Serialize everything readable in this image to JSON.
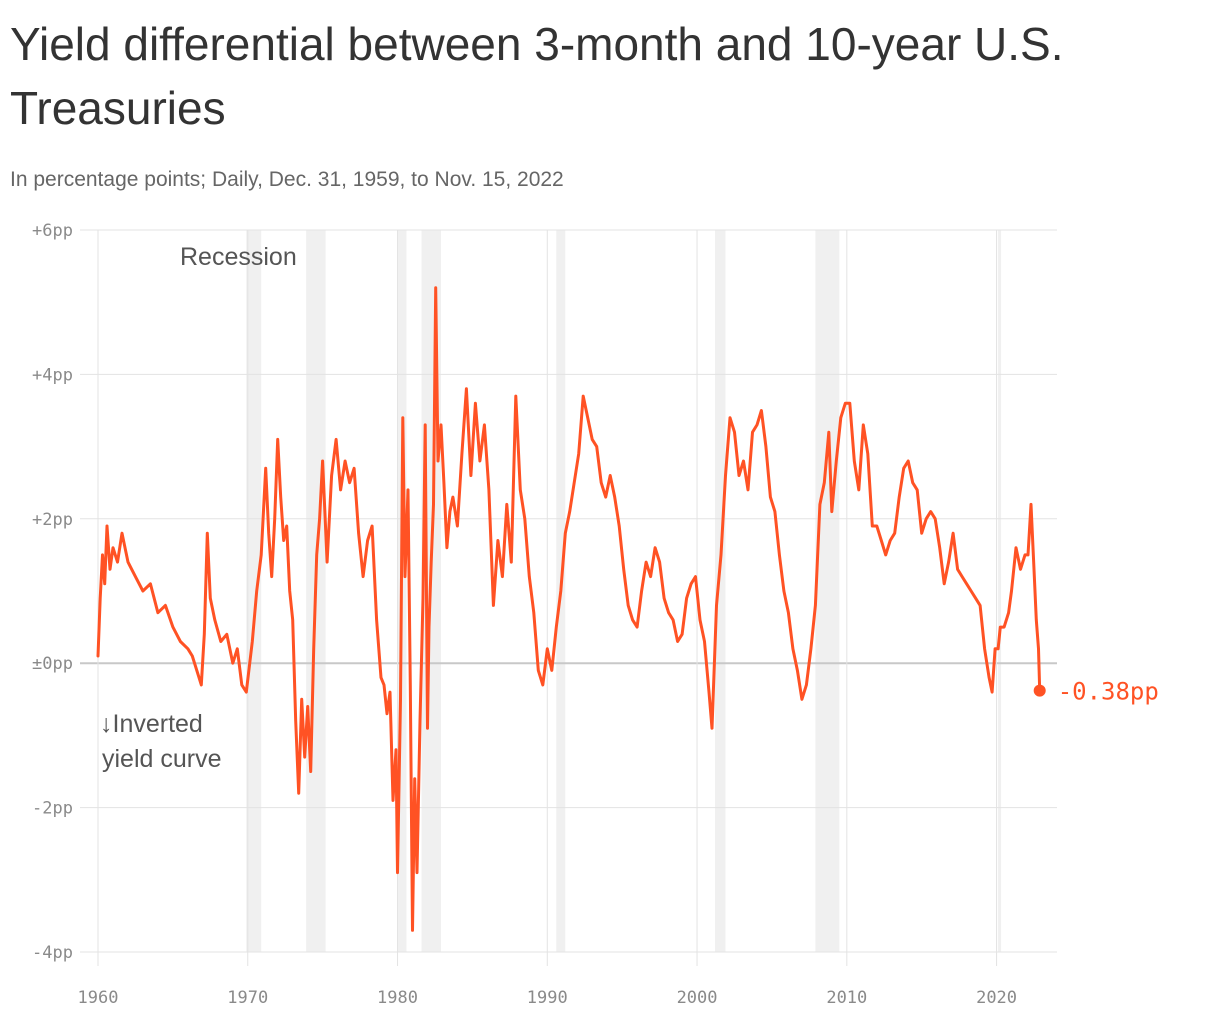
{
  "title": "Yield differential between 3‑month and 10‑year U.S. Treasuries",
  "subtitle": "In percentage points; Daily, Dec. 31, 1959, to Nov. 15, 2022",
  "colors": {
    "line": "#ff5224",
    "recession": "#f0f0f0",
    "grid": "#e3e3e3",
    "zero": "#c8c8c8",
    "tick": "#8a8a8a"
  },
  "annotations": {
    "recession": "Recession",
    "inverted_line1": "↓Inverted",
    "inverted_line2": "yield curve"
  },
  "chart_data": {
    "type": "line",
    "title": "Yield differential between 3‑month and 10‑year U.S. Treasuries",
    "subtitle": "In percentage points; Daily, Dec. 31, 1959, to Nov. 15, 2022",
    "xlabel": "",
    "ylabel": "",
    "xlim": [
      1960,
      2022.9
    ],
    "ylim": [
      -4,
      6
    ],
    "grid": true,
    "y_ticks": [
      {
        "value": 6,
        "label": "+6pp"
      },
      {
        "value": 4,
        "label": "+4pp"
      },
      {
        "value": 2,
        "label": "+2pp"
      },
      {
        "value": 0,
        "label": "±0pp"
      },
      {
        "value": -2,
        "label": "-2pp"
      },
      {
        "value": -4,
        "label": "-4pp"
      }
    ],
    "x_ticks": [
      1960,
      1970,
      1980,
      1990,
      2000,
      2010,
      2020
    ],
    "recessions": [
      [
        1969.9,
        1970.9
      ],
      [
        1973.9,
        1975.2
      ],
      [
        1980.0,
        1980.6
      ],
      [
        1981.6,
        1982.9
      ],
      [
        1990.6,
        1991.2
      ],
      [
        2001.2,
        2001.9
      ],
      [
        2007.9,
        2009.5
      ],
      [
        2020.1,
        2020.3
      ]
    ],
    "series": [
      {
        "values": [
          [
            1960.0,
            0.1
          ],
          [
            1960.15,
            0.9
          ],
          [
            1960.3,
            1.5
          ],
          [
            1960.45,
            1.1
          ],
          [
            1960.6,
            1.9
          ],
          [
            1960.8,
            1.3
          ],
          [
            1961.0,
            1.6
          ],
          [
            1961.3,
            1.4
          ],
          [
            1961.6,
            1.8
          ],
          [
            1962.0,
            1.4
          ],
          [
            1962.5,
            1.2
          ],
          [
            1963.0,
            1.0
          ],
          [
            1963.5,
            1.1
          ],
          [
            1964.0,
            0.7
          ],
          [
            1964.5,
            0.8
          ],
          [
            1965.0,
            0.5
          ],
          [
            1965.5,
            0.3
          ],
          [
            1966.0,
            0.2
          ],
          [
            1966.3,
            0.1
          ],
          [
            1966.6,
            -0.1
          ],
          [
            1966.9,
            -0.3
          ],
          [
            1967.1,
            0.4
          ],
          [
            1967.3,
            1.8
          ],
          [
            1967.5,
            0.9
          ],
          [
            1967.8,
            0.6
          ],
          [
            1968.2,
            0.3
          ],
          [
            1968.6,
            0.4
          ],
          [
            1969.0,
            0.0
          ],
          [
            1969.3,
            0.2
          ],
          [
            1969.6,
            -0.3
          ],
          [
            1969.9,
            -0.4
          ],
          [
            1970.3,
            0.3
          ],
          [
            1970.6,
            1.0
          ],
          [
            1970.9,
            1.5
          ],
          [
            1971.2,
            2.7
          ],
          [
            1971.4,
            1.8
          ],
          [
            1971.6,
            1.2
          ],
          [
            1971.8,
            2.0
          ],
          [
            1972.0,
            3.1
          ],
          [
            1972.2,
            2.3
          ],
          [
            1972.4,
            1.7
          ],
          [
            1972.6,
            1.9
          ],
          [
            1972.8,
            1.0
          ],
          [
            1973.0,
            0.6
          ],
          [
            1973.2,
            -0.8
          ],
          [
            1973.4,
            -1.8
          ],
          [
            1973.6,
            -0.5
          ],
          [
            1973.8,
            -1.3
          ],
          [
            1974.0,
            -0.6
          ],
          [
            1974.2,
            -1.5
          ],
          [
            1974.4,
            0.2
          ],
          [
            1974.6,
            1.5
          ],
          [
            1974.8,
            2.0
          ],
          [
            1975.0,
            2.8
          ],
          [
            1975.3,
            1.4
          ],
          [
            1975.6,
            2.6
          ],
          [
            1975.9,
            3.1
          ],
          [
            1976.2,
            2.4
          ],
          [
            1976.5,
            2.8
          ],
          [
            1976.8,
            2.5
          ],
          [
            1977.1,
            2.7
          ],
          [
            1977.4,
            1.8
          ],
          [
            1977.7,
            1.2
          ],
          [
            1978.0,
            1.7
          ],
          [
            1978.3,
            1.9
          ],
          [
            1978.6,
            0.6
          ],
          [
            1978.9,
            -0.2
          ],
          [
            1979.1,
            -0.3
          ],
          [
            1979.3,
            -0.7
          ],
          [
            1979.5,
            -0.4
          ],
          [
            1979.7,
            -1.9
          ],
          [
            1979.9,
            -1.2
          ],
          [
            1980.0,
            -2.9
          ],
          [
            1980.2,
            -0.5
          ],
          [
            1980.35,
            3.4
          ],
          [
            1980.5,
            1.2
          ],
          [
            1980.7,
            2.4
          ],
          [
            1980.85,
            -0.3
          ],
          [
            1981.0,
            -3.7
          ],
          [
            1981.15,
            -1.6
          ],
          [
            1981.3,
            -2.9
          ],
          [
            1981.5,
            -0.8
          ],
          [
            1981.7,
            0.9
          ],
          [
            1981.85,
            3.3
          ],
          [
            1982.0,
            -0.9
          ],
          [
            1982.1,
            0.5
          ],
          [
            1982.25,
            1.4
          ],
          [
            1982.4,
            2.2
          ],
          [
            1982.55,
            5.2
          ],
          [
            1982.7,
            2.8
          ],
          [
            1982.9,
            3.3
          ],
          [
            1983.1,
            2.5
          ],
          [
            1983.3,
            1.6
          ],
          [
            1983.5,
            2.1
          ],
          [
            1983.7,
            2.3
          ],
          [
            1984.0,
            1.9
          ],
          [
            1984.3,
            2.9
          ],
          [
            1984.6,
            3.8
          ],
          [
            1984.9,
            2.6
          ],
          [
            1985.2,
            3.6
          ],
          [
            1985.5,
            2.8
          ],
          [
            1985.8,
            3.3
          ],
          [
            1986.1,
            2.4
          ],
          [
            1986.4,
            0.8
          ],
          [
            1986.7,
            1.7
          ],
          [
            1987.0,
            1.2
          ],
          [
            1987.3,
            2.2
          ],
          [
            1987.6,
            1.4
          ],
          [
            1987.9,
            3.7
          ],
          [
            1988.2,
            2.4
          ],
          [
            1988.5,
            2.0
          ],
          [
            1988.8,
            1.2
          ],
          [
            1989.1,
            0.7
          ],
          [
            1989.4,
            -0.1
          ],
          [
            1989.7,
            -0.3
          ],
          [
            1990.0,
            0.2
          ],
          [
            1990.3,
            -0.1
          ],
          [
            1990.6,
            0.5
          ],
          [
            1990.9,
            1.0
          ],
          [
            1991.2,
            1.8
          ],
          [
            1991.5,
            2.1
          ],
          [
            1991.8,
            2.5
          ],
          [
            1992.1,
            2.9
          ],
          [
            1992.4,
            3.7
          ],
          [
            1992.7,
            3.4
          ],
          [
            1993.0,
            3.1
          ],
          [
            1993.3,
            3.0
          ],
          [
            1993.6,
            2.5
          ],
          [
            1993.9,
            2.3
          ],
          [
            1994.2,
            2.6
          ],
          [
            1994.5,
            2.3
          ],
          [
            1994.8,
            1.9
          ],
          [
            1995.1,
            1.3
          ],
          [
            1995.4,
            0.8
          ],
          [
            1995.7,
            0.6
          ],
          [
            1996.0,
            0.5
          ],
          [
            1996.3,
            1.0
          ],
          [
            1996.6,
            1.4
          ],
          [
            1996.9,
            1.2
          ],
          [
            1997.2,
            1.6
          ],
          [
            1997.5,
            1.4
          ],
          [
            1997.8,
            0.9
          ],
          [
            1998.1,
            0.7
          ],
          [
            1998.4,
            0.6
          ],
          [
            1998.7,
            0.3
          ],
          [
            1999.0,
            0.4
          ],
          [
            1999.3,
            0.9
          ],
          [
            1999.6,
            1.1
          ],
          [
            1999.9,
            1.2
          ],
          [
            2000.2,
            0.6
          ],
          [
            2000.5,
            0.3
          ],
          [
            2000.8,
            -0.4
          ],
          [
            2001.0,
            -0.9
          ],
          [
            2001.3,
            0.8
          ],
          [
            2001.6,
            1.5
          ],
          [
            2001.9,
            2.6
          ],
          [
            2002.2,
            3.4
          ],
          [
            2002.5,
            3.2
          ],
          [
            2002.8,
            2.6
          ],
          [
            2003.1,
            2.8
          ],
          [
            2003.4,
            2.4
          ],
          [
            2003.7,
            3.2
          ],
          [
            2004.0,
            3.3
          ],
          [
            2004.3,
            3.5
          ],
          [
            2004.6,
            3.0
          ],
          [
            2004.9,
            2.3
          ],
          [
            2005.2,
            2.1
          ],
          [
            2005.5,
            1.5
          ],
          [
            2005.8,
            1.0
          ],
          [
            2006.1,
            0.7
          ],
          [
            2006.4,
            0.2
          ],
          [
            2006.7,
            -0.1
          ],
          [
            2007.0,
            -0.5
          ],
          [
            2007.3,
            -0.3
          ],
          [
            2007.6,
            0.2
          ],
          [
            2007.9,
            0.8
          ],
          [
            2008.2,
            2.2
          ],
          [
            2008.5,
            2.5
          ],
          [
            2008.8,
            3.2
          ],
          [
            2009.0,
            2.1
          ],
          [
            2009.3,
            2.8
          ],
          [
            2009.6,
            3.4
          ],
          [
            2009.9,
            3.6
          ],
          [
            2010.2,
            3.6
          ],
          [
            2010.5,
            2.8
          ],
          [
            2010.8,
            2.4
          ],
          [
            2011.1,
            3.3
          ],
          [
            2011.4,
            2.9
          ],
          [
            2011.7,
            1.9
          ],
          [
            2012.0,
            1.9
          ],
          [
            2012.3,
            1.7
          ],
          [
            2012.6,
            1.5
          ],
          [
            2012.9,
            1.7
          ],
          [
            2013.2,
            1.8
          ],
          [
            2013.5,
            2.3
          ],
          [
            2013.8,
            2.7
          ],
          [
            2014.1,
            2.8
          ],
          [
            2014.4,
            2.5
          ],
          [
            2014.7,
            2.4
          ],
          [
            2015.0,
            1.8
          ],
          [
            2015.3,
            2.0
          ],
          [
            2015.6,
            2.1
          ],
          [
            2015.9,
            2.0
          ],
          [
            2016.2,
            1.6
          ],
          [
            2016.5,
            1.1
          ],
          [
            2016.8,
            1.4
          ],
          [
            2017.1,
            1.8
          ],
          [
            2017.4,
            1.3
          ],
          [
            2017.7,
            1.2
          ],
          [
            2018.0,
            1.1
          ],
          [
            2018.3,
            1.0
          ],
          [
            2018.6,
            0.9
          ],
          [
            2018.9,
            0.8
          ],
          [
            2019.2,
            0.2
          ],
          [
            2019.5,
            -0.2
          ],
          [
            2019.7,
            -0.4
          ],
          [
            2019.9,
            0.2
          ],
          [
            2020.1,
            0.2
          ],
          [
            2020.25,
            0.5
          ],
          [
            2020.5,
            0.5
          ],
          [
            2020.8,
            0.7
          ],
          [
            2021.0,
            1.0
          ],
          [
            2021.3,
            1.6
          ],
          [
            2021.6,
            1.3
          ],
          [
            2021.9,
            1.5
          ],
          [
            2022.1,
            1.5
          ],
          [
            2022.3,
            2.2
          ],
          [
            2022.5,
            1.3
          ],
          [
            2022.65,
            0.6
          ],
          [
            2022.8,
            0.2
          ],
          [
            2022.88,
            -0.38
          ]
        ]
      }
    ],
    "end_label": "-0.38pp",
    "end_value": -0.38
  }
}
